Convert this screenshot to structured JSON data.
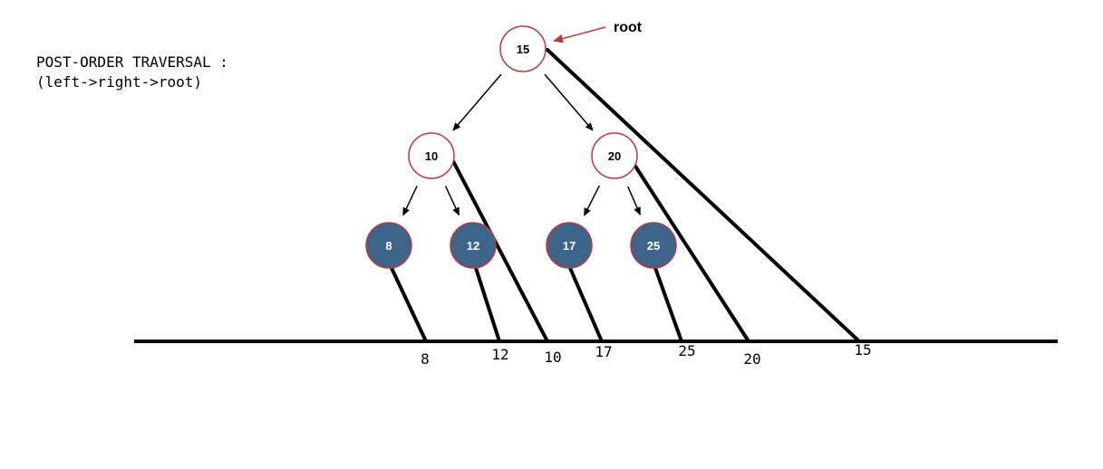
{
  "heading": {
    "line1": "POST-ORDER TRAVERSAL :",
    "line2": "(left->right->root)"
  },
  "root_label": "root",
  "colors": {
    "internal_node_fill": "#ffffff",
    "internal_node_stroke": "#c0363c",
    "leaf_node_fill": "#3d6589",
    "leaf_node_stroke": "#c0363c",
    "root_arrow": "#c0363c",
    "edge": "#000000"
  },
  "tree": {
    "nodes": [
      {
        "id": "n15",
        "value": "15",
        "type": "internal"
      },
      {
        "id": "n10",
        "value": "10",
        "type": "internal"
      },
      {
        "id": "n20",
        "value": "20",
        "type": "internal"
      },
      {
        "id": "n8",
        "value": "8",
        "type": "leaf"
      },
      {
        "id": "n12",
        "value": "12",
        "type": "leaf"
      },
      {
        "id": "n17",
        "value": "17",
        "type": "leaf"
      },
      {
        "id": "n25",
        "value": "25",
        "type": "leaf"
      }
    ],
    "edges": [
      [
        "n15",
        "n10"
      ],
      [
        "n15",
        "n20"
      ],
      [
        "n10",
        "n8"
      ],
      [
        "n10",
        "n12"
      ],
      [
        "n20",
        "n17"
      ],
      [
        "n20",
        "n25"
      ]
    ]
  },
  "traversal_order": [
    "8",
    "12",
    "10",
    "17",
    "25",
    "20",
    "15"
  ]
}
